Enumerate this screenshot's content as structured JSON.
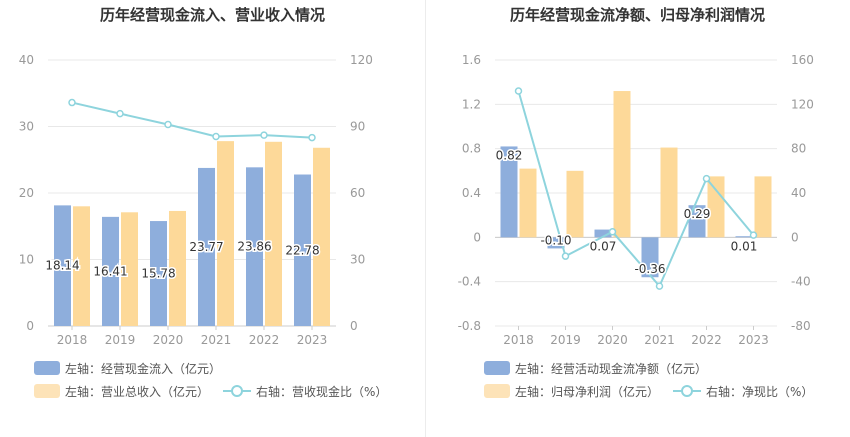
{
  "chart_data": [
    {
      "type": "bar",
      "title": "历年经营现金流入、营业收入情况",
      "categories": [
        "2018",
        "2019",
        "2020",
        "2021",
        "2022",
        "2023"
      ],
      "y_left": {
        "ticks": [
          "0",
          "10",
          "20",
          "30",
          "40"
        ],
        "lim": [
          0,
          40
        ]
      },
      "y_right": {
        "ticks": [
          "0",
          "30",
          "60",
          "90",
          "120"
        ],
        "lim": [
          0,
          120
        ]
      },
      "series": [
        {
          "name": "左轴：经营现金流入（亿元）",
          "type": "bar",
          "axis": "left",
          "color": "#8eaedc",
          "values": [
            18.14,
            16.41,
            15.78,
            23.77,
            23.86,
            22.78
          ],
          "labels": [
            "18.14",
            "16.41",
            "15.78",
            "23.77",
            "23.86",
            "22.78"
          ]
        },
        {
          "name": "左轴：营业总收入（亿元）",
          "type": "bar",
          "axis": "left",
          "color": "#fdd999",
          "values": [
            18.0,
            17.1,
            17.3,
            27.8,
            27.7,
            26.8
          ]
        },
        {
          "name": "右轴：营收现金比（%）",
          "type": "line",
          "axis": "right",
          "color": "#8ed4dd",
          "values": [
            100.8,
            95.8,
            90.9,
            85.5,
            86.1,
            85.0
          ]
        }
      ]
    },
    {
      "type": "bar",
      "title": "历年经营现金流净额、归母净利润情况",
      "categories": [
        "2018",
        "2019",
        "2020",
        "2021",
        "2022",
        "2023"
      ],
      "y_left": {
        "ticks": [
          "-0.8",
          "-0.4",
          "0",
          "0.4",
          "0.8",
          "1.2",
          "1.6"
        ],
        "lim": [
          -0.8,
          1.6
        ]
      },
      "y_right": {
        "ticks": [
          "-80",
          "-40",
          "0",
          "40",
          "80",
          "120",
          "160"
        ],
        "lim": [
          -80,
          160
        ]
      },
      "series": [
        {
          "name": "左轴：经营活动现金流净额（亿元）",
          "type": "bar",
          "axis": "left",
          "color": "#8eaedc",
          "values": [
            0.82,
            -0.1,
            0.07,
            -0.36,
            0.29,
            0.01
          ],
          "labels": [
            "0.82",
            "-0.10",
            "0.07",
            "-0.36",
            "0.29",
            "0.01"
          ]
        },
        {
          "name": "左轴：归母净利润（亿元）",
          "type": "bar",
          "axis": "left",
          "color": "#fdd999",
          "values": [
            0.62,
            0.6,
            1.32,
            0.81,
            0.55,
            0.55
          ]
        },
        {
          "name": "右轴：净现比（%）",
          "type": "line",
          "axis": "right",
          "color": "#8ed4dd",
          "values": [
            132,
            -17,
            5,
            -44,
            53,
            2
          ]
        }
      ]
    }
  ],
  "colors": {
    "axis_text": "#999999",
    "grid": "#e8e8e8",
    "title": "#333333"
  }
}
